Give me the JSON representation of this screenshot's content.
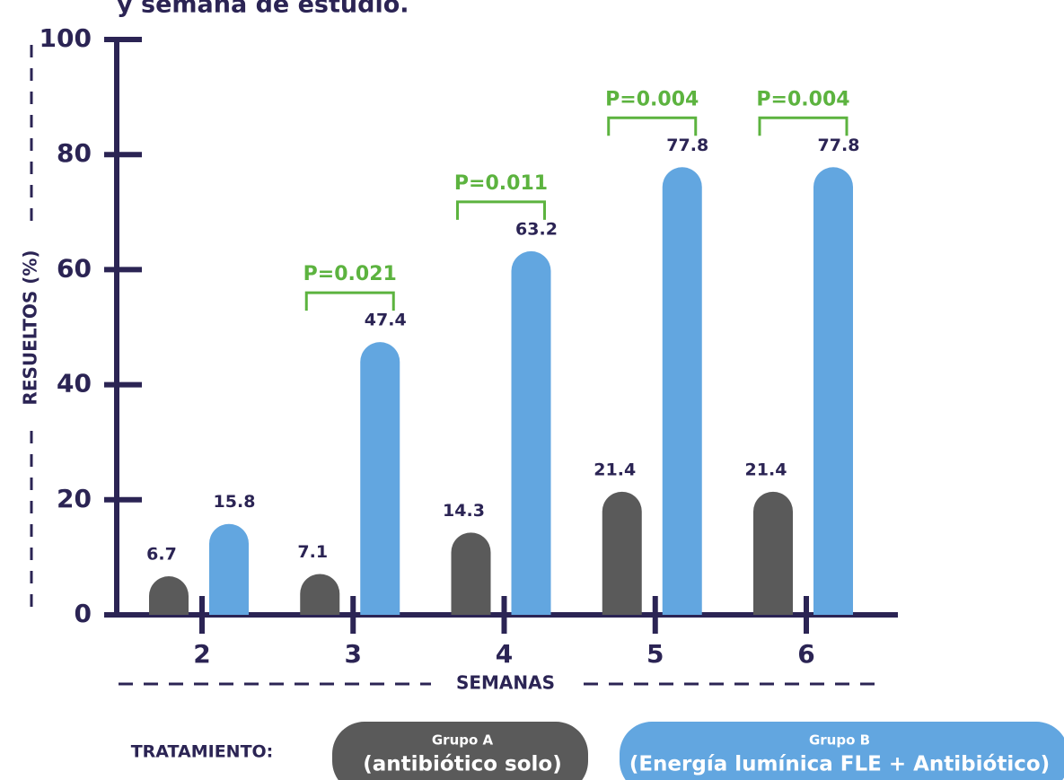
{
  "chart_data": {
    "type": "bar",
    "title": "y semana de estudio.",
    "y_label": "RESUELTOS (%)",
    "x_label": "SEMANAS",
    "legend_title": "TRATAMIENTO:",
    "categories": [
      "2",
      "3",
      "4",
      "5",
      "6"
    ],
    "series": [
      {
        "name": "Grupo A",
        "description": "(antibiótico solo)",
        "color": "#5a5a5a",
        "values": [
          6.7,
          7.1,
          14.3,
          21.4,
          21.4
        ]
      },
      {
        "name": "Grupo B",
        "description": "(Energía lumínica FLE + Antibiótico)",
        "color": "#62a6e0",
        "values": [
          15.8,
          47.4,
          63.2,
          77.8,
          77.8
        ]
      }
    ],
    "p_values": [
      null,
      "P=0.021",
      "P=0.011",
      "P=0.004",
      "P=0.004"
    ],
    "annotation_color": "#5cb33f",
    "ylim": [
      0,
      100
    ],
    "yticks": [
      0,
      20,
      40,
      60,
      80,
      100
    ]
  }
}
